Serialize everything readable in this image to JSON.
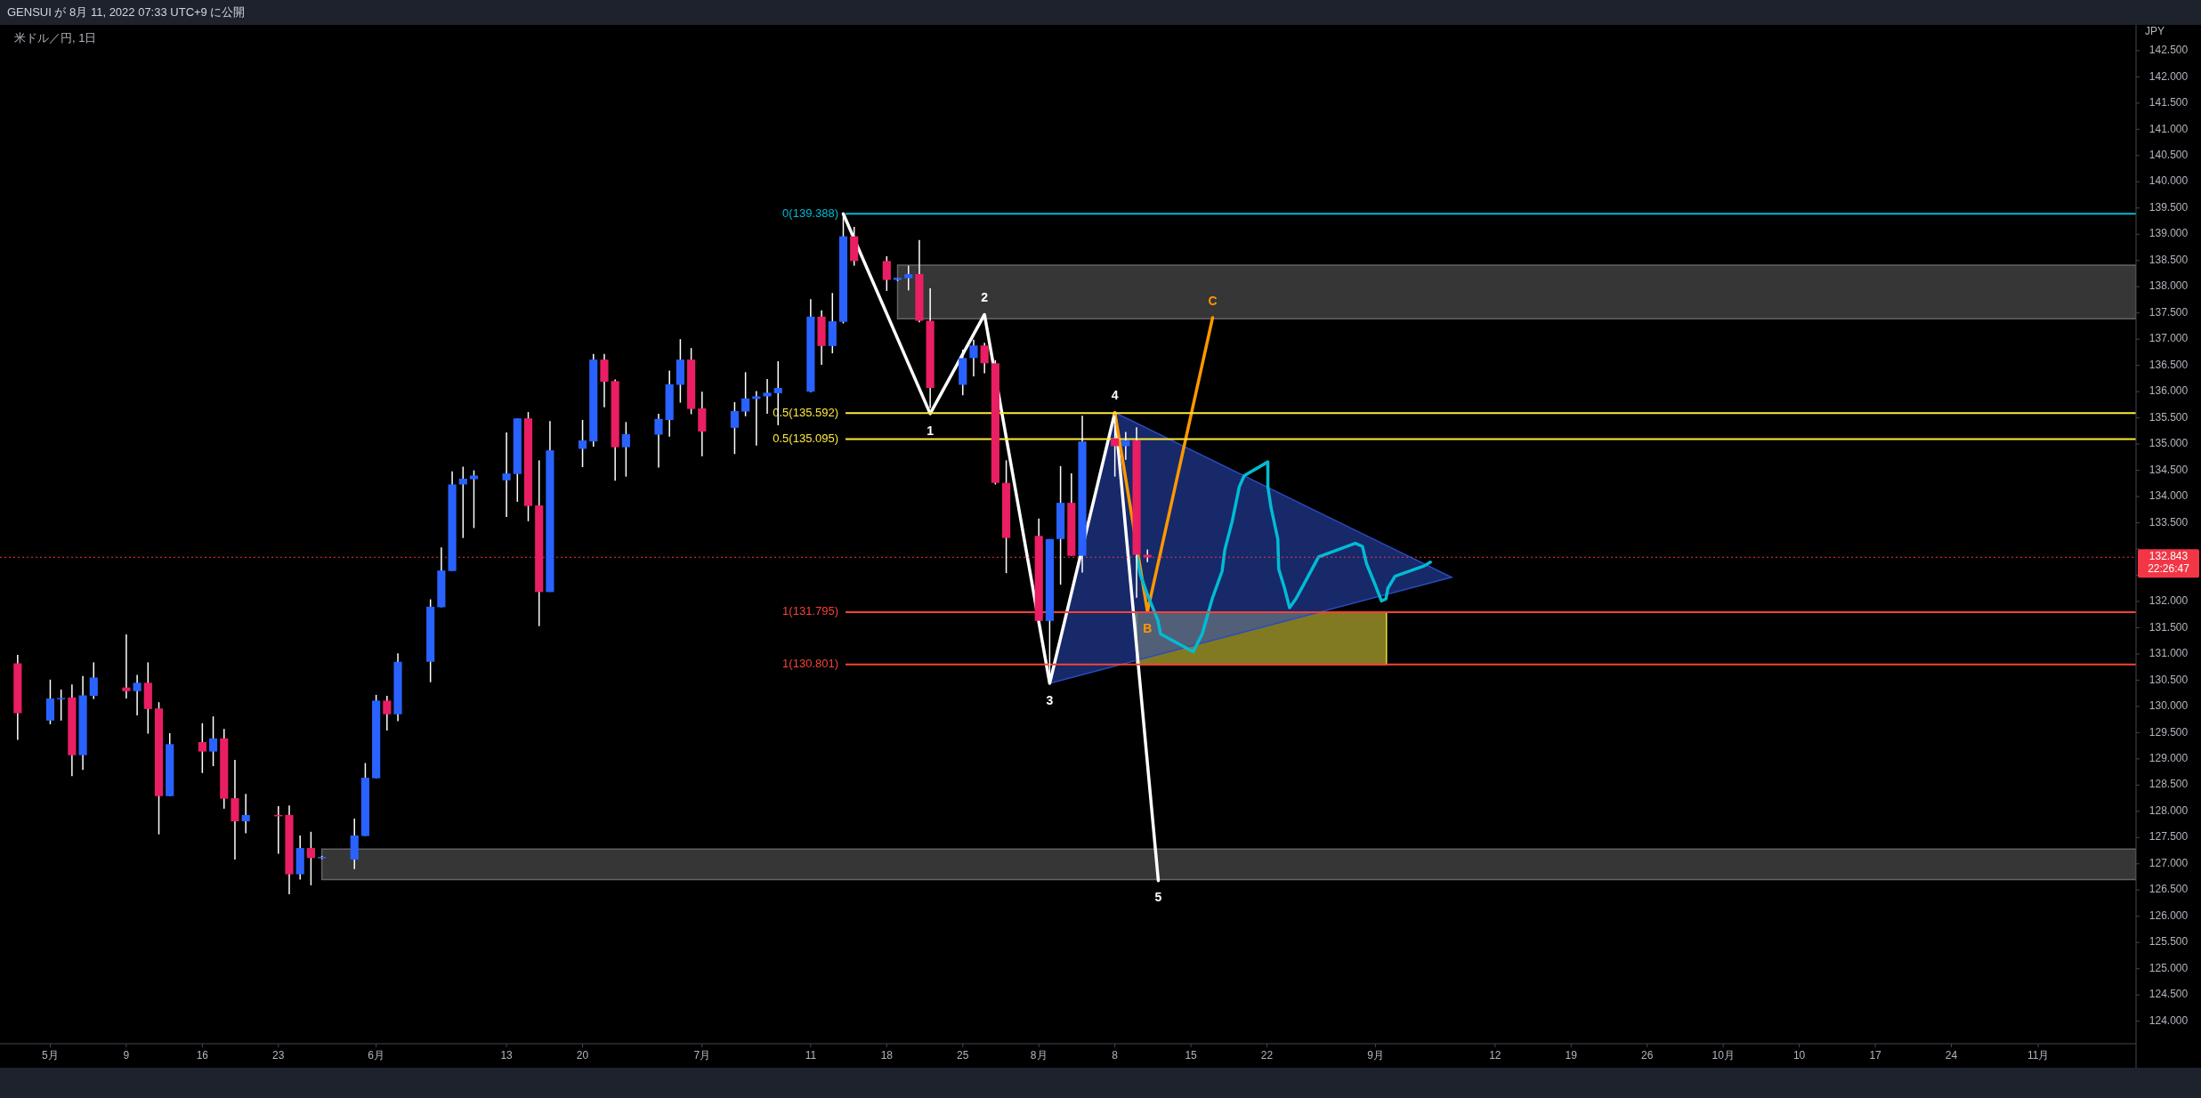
{
  "chart_data": {
    "type": "candlestick",
    "title": "米ドル／円, 1日",
    "subtitle": "GENSUI が 8月 11, 2022 07:33 UTC+9 に公開",
    "ylabel": "JPY",
    "xlim": [
      "2022-04-27T09:00",
      "2022-11-10"
    ],
    "ylim": [
      123.57,
      142.99
    ],
    "xticks": [
      {
        "value": "2022-05-02",
        "label": "5月"
      },
      {
        "value": "2022-05-09",
        "label": "9"
      },
      {
        "value": "2022-05-16",
        "label": "16"
      },
      {
        "value": "2022-05-23",
        "label": "23"
      },
      {
        "value": "2022-06-01",
        "label": "6月"
      },
      {
        "value": "2022-06-13",
        "label": "13"
      },
      {
        "value": "2022-06-20",
        "label": "20"
      },
      {
        "value": "2022-07-01",
        "label": "7月"
      },
      {
        "value": "2022-07-11",
        "label": "11"
      },
      {
        "value": "2022-07-18",
        "label": "18"
      },
      {
        "value": "2022-07-25",
        "label": "25"
      },
      {
        "value": "2022-08-01",
        "label": "8月"
      },
      {
        "value": "2022-08-08",
        "label": "8"
      },
      {
        "value": "2022-08-15",
        "label": "15"
      },
      {
        "value": "2022-08-22",
        "label": "22"
      },
      {
        "value": "2022-09-01",
        "label": "9月"
      },
      {
        "value": "2022-09-12",
        "label": "12"
      },
      {
        "value": "2022-09-19",
        "label": "19"
      },
      {
        "value": "2022-09-26",
        "label": "26"
      },
      {
        "value": "2022-10-03",
        "label": "10月"
      },
      {
        "value": "2022-10-10",
        "label": "10"
      },
      {
        "value": "2022-10-17",
        "label": "17"
      },
      {
        "value": "2022-10-24",
        "label": "24"
      },
      {
        "value": "2022-11-01",
        "label": "11月"
      }
    ],
    "yticks": [
      {
        "value": 124,
        "label": "124.000"
      },
      {
        "value": 124.5,
        "label": "124.500"
      },
      {
        "value": 125,
        "label": "125.000"
      },
      {
        "value": 125.5,
        "label": "125.500"
      },
      {
        "value": 126,
        "label": "126.000"
      },
      {
        "value": 126.5,
        "label": "126.500"
      },
      {
        "value": 127,
        "label": "127.000"
      },
      {
        "value": 127.5,
        "label": "127.500"
      },
      {
        "value": 128,
        "label": "128.000"
      },
      {
        "value": 128.5,
        "label": "128.500"
      },
      {
        "value": 129,
        "label": "129.000"
      },
      {
        "value": 129.5,
        "label": "129.500"
      },
      {
        "value": 130,
        "label": "130.000"
      },
      {
        "value": 130.5,
        "label": "130.500"
      },
      {
        "value": 131,
        "label": "131.000"
      },
      {
        "value": 131.5,
        "label": "131.500"
      },
      {
        "value": 132,
        "label": "132.000"
      },
      {
        "value": 132.5,
        "label": null
      },
      {
        "value": 133,
        "label": null
      },
      {
        "value": 133.5,
        "label": "133.500"
      },
      {
        "value": 134,
        "label": "134.000"
      },
      {
        "value": 134.5,
        "label": "134.500"
      },
      {
        "value": 135,
        "label": "135.000"
      },
      {
        "value": 135.5,
        "label": "135.500"
      },
      {
        "value": 136,
        "label": "136.000"
      },
      {
        "value": 136.5,
        "label": "136.500"
      },
      {
        "value": 137,
        "label": "137.000"
      },
      {
        "value": 137.5,
        "label": "137.500"
      },
      {
        "value": 138,
        "label": "138.000"
      },
      {
        "value": 138.5,
        "label": "138.500"
      },
      {
        "value": 139,
        "label": "139.000"
      },
      {
        "value": 139.5,
        "label": "139.500"
      },
      {
        "value": 140,
        "label": "140.000"
      },
      {
        "value": 140.5,
        "label": "140.500"
      },
      {
        "value": 141,
        "label": "141.000"
      },
      {
        "value": 141.5,
        "label": "141.500"
      },
      {
        "value": 142,
        "label": "142.000"
      },
      {
        "value": 142.5,
        "label": "142.500"
      }
    ],
    "x": [
      "2022-04-29",
      "2022-05-02",
      "2022-05-03",
      "2022-05-04",
      "2022-05-05",
      "2022-05-06",
      "2022-05-09",
      "2022-05-10",
      "2022-05-11",
      "2022-05-12",
      "2022-05-13",
      "2022-05-16",
      "2022-05-17",
      "2022-05-18",
      "2022-05-19",
      "2022-05-20",
      "2022-05-23",
      "2022-05-24",
      "2022-05-25",
      "2022-05-26",
      "2022-05-27",
      "2022-05-30",
      "2022-05-31",
      "2022-06-01",
      "2022-06-02",
      "2022-06-03",
      "2022-06-06",
      "2022-06-07",
      "2022-06-08",
      "2022-06-09",
      "2022-06-10",
      "2022-06-13",
      "2022-06-14",
      "2022-06-15",
      "2022-06-16",
      "2022-06-17",
      "2022-06-20",
      "2022-06-21",
      "2022-06-22",
      "2022-06-23",
      "2022-06-24",
      "2022-06-27",
      "2022-06-28",
      "2022-06-29",
      "2022-06-30",
      "2022-07-01",
      "2022-07-04",
      "2022-07-05",
      "2022-07-06",
      "2022-07-07",
      "2022-07-08",
      "2022-07-11",
      "2022-07-12",
      "2022-07-13",
      "2022-07-14",
      "2022-07-15",
      "2022-07-18",
      "2022-07-19",
      "2022-07-20",
      "2022-07-21",
      "2022-07-22",
      "2022-07-25",
      "2022-07-26",
      "2022-07-27",
      "2022-07-28",
      "2022-07-29",
      "2022-08-01",
      "2022-08-02",
      "2022-08-03",
      "2022-08-04",
      "2022-08-05",
      "2022-08-08",
      "2022-08-09",
      "2022-08-10",
      "2022-08-11"
    ],
    "ohlc": [
      [
        130.82,
        130.98,
        129.36,
        129.87
      ],
      [
        129.73,
        130.51,
        129.66,
        130.15
      ],
      [
        130.15,
        130.32,
        129.73,
        130.16
      ],
      [
        130.17,
        130.42,
        128.67,
        129.07
      ],
      [
        129.07,
        130.58,
        128.79,
        130.21
      ],
      [
        130.2,
        130.84,
        130.14,
        130.55
      ],
      [
        130.36,
        131.37,
        130.15,
        130.29
      ],
      [
        130.29,
        130.6,
        129.83,
        130.45
      ],
      [
        130.45,
        130.84,
        129.48,
        129.95
      ],
      [
        129.96,
        130.08,
        127.56,
        128.29
      ],
      [
        128.29,
        129.49,
        128.29,
        129.28
      ],
      [
        129.32,
        129.68,
        128.73,
        129.14
      ],
      [
        129.14,
        129.81,
        128.86,
        129.39
      ],
      [
        129.39,
        129.57,
        128.05,
        128.24
      ],
      [
        128.25,
        128.98,
        127.08,
        127.81
      ],
      [
        127.81,
        128.33,
        127.58,
        127.93
      ],
      [
        127.93,
        128.1,
        127.19,
        127.92
      ],
      [
        127.93,
        128.11,
        126.42,
        126.8
      ],
      [
        126.8,
        127.54,
        126.7,
        127.3
      ],
      [
        127.3,
        127.61,
        126.59,
        127.11
      ],
      [
        127.11,
        127.15,
        127.09,
        127.13
      ],
      [
        127.08,
        127.86,
        126.9,
        127.54
      ],
      [
        127.53,
        128.92,
        127.53,
        128.64
      ],
      [
        128.63,
        130.22,
        128.63,
        130.11
      ],
      [
        130.11,
        130.2,
        129.54,
        129.85
      ],
      [
        129.85,
        131.01,
        129.72,
        130.85
      ],
      [
        130.85,
        132.04,
        130.46,
        131.9
      ],
      [
        131.89,
        133.03,
        131.89,
        132.59
      ],
      [
        132.58,
        134.48,
        132.58,
        134.23
      ],
      [
        134.23,
        134.57,
        133.21,
        134.34
      ],
      [
        134.33,
        134.5,
        133.4,
        134.4
      ],
      [
        134.31,
        135.22,
        133.61,
        134.44
      ],
      [
        134.43,
        135.49,
        133.9,
        135.49
      ],
      [
        135.49,
        135.61,
        133.53,
        133.82
      ],
      [
        133.83,
        134.69,
        131.53,
        132.18
      ],
      [
        132.18,
        135.44,
        132.18,
        134.88
      ],
      [
        134.91,
        135.46,
        134.56,
        135.07
      ],
      [
        135.05,
        136.72,
        134.95,
        136.61
      ],
      [
        136.61,
        136.72,
        135.7,
        136.19
      ],
      [
        136.2,
        136.23,
        134.3,
        134.94
      ],
      [
        134.94,
        135.42,
        134.38,
        135.19
      ],
      [
        135.18,
        135.58,
        134.55,
        135.48
      ],
      [
        135.46,
        136.4,
        135.14,
        136.14
      ],
      [
        136.13,
        137.0,
        135.79,
        136.61
      ],
      [
        136.61,
        136.83,
        135.57,
        135.67
      ],
      [
        135.68,
        136.0,
        134.77,
        135.24
      ],
      [
        135.31,
        135.8,
        134.81,
        135.63
      ],
      [
        135.62,
        136.37,
        135.53,
        135.87
      ],
      [
        135.86,
        136.01,
        134.97,
        135.91
      ],
      [
        135.91,
        136.24,
        135.58,
        135.98
      ],
      [
        135.97,
        136.58,
        135.36,
        136.07
      ],
      [
        136.0,
        137.76,
        135.99,
        137.43
      ],
      [
        137.43,
        137.55,
        136.51,
        136.87
      ],
      [
        136.87,
        137.88,
        136.73,
        137.34
      ],
      [
        137.33,
        139.39,
        137.3,
        138.96
      ],
      [
        138.96,
        139.14,
        138.4,
        138.49
      ],
      [
        138.49,
        138.58,
        137.92,
        138.13
      ],
      [
        138.13,
        138.17,
        138.11,
        138.17
      ],
      [
        138.16,
        138.4,
        137.93,
        138.24
      ],
      [
        138.24,
        138.89,
        137.32,
        137.35
      ],
      [
        137.35,
        137.97,
        135.69,
        136.07
      ],
      [
        136.13,
        136.8,
        135.93,
        136.64
      ],
      [
        136.64,
        136.99,
        136.29,
        136.88
      ],
      [
        136.88,
        136.93,
        136.35,
        136.54
      ],
      [
        136.54,
        136.6,
        134.23,
        134.26
      ],
      [
        134.26,
        134.69,
        132.54,
        133.21
      ],
      [
        133.25,
        133.58,
        131.63,
        131.63
      ],
      [
        131.63,
        133.19,
        130.44,
        133.19
      ],
      [
        133.19,
        134.58,
        132.32,
        133.88
      ],
      [
        133.88,
        134.44,
        132.87,
        132.87
      ],
      [
        132.87,
        135.54,
        132.55,
        135.05
      ],
      [
        135.11,
        135.54,
        134.38,
        134.96
      ],
      [
        134.96,
        135.23,
        134.7,
        135.07
      ],
      [
        135.07,
        135.32,
        132.07,
        132.89
      ],
      [
        132.89,
        132.99,
        132.75,
        132.84
      ]
    ],
    "colors": [
      "#e91e63",
      "#2962ff",
      "#2962ff",
      "#e91e63",
      "#2962ff",
      "#2962ff",
      "#e91e63",
      "#2962ff",
      "#e91e63",
      "#e91e63",
      "#2962ff",
      "#e91e63",
      "#2962ff",
      "#e91e63",
      "#e91e63",
      "#2962ff",
      "#e91e63",
      "#e91e63",
      "#2962ff",
      "#e91e63",
      "#2962ff",
      "#2962ff",
      "#2962ff",
      "#2962ff",
      "#e91e63",
      "#2962ff",
      "#2962ff",
      "#2962ff",
      "#2962ff",
      "#2962ff",
      "#2962ff",
      "#2962ff",
      "#2962ff",
      "#e91e63",
      "#e91e63",
      "#2962ff",
      "#2962ff",
      "#2962ff",
      "#e91e63",
      "#e91e63",
      "#2962ff",
      "#2962ff",
      "#2962ff",
      "#2962ff",
      "#e91e63",
      "#e91e63",
      "#2962ff",
      "#2962ff",
      "#2962ff",
      "#2962ff",
      "#2962ff",
      "#2962ff",
      "#e91e63",
      "#2962ff",
      "#2962ff",
      "#e91e63",
      "#e91e63",
      "#2962ff",
      "#2962ff",
      "#e91e63",
      "#e91e63",
      "#2962ff",
      "#2962ff",
      "#e91e63",
      "#e91e63",
      "#e91e63",
      "#e91e63",
      "#2962ff",
      "#2962ff",
      "#e91e63",
      "#2962ff",
      "#e91e63",
      "#2962ff",
      "#e91e63",
      "#e91e63"
    ],
    "series": [
      {
        "type": "area",
        "color": "#636363",
        "x": [
          "2022-07-19",
          "2022-11-10",
          "2022-11-10",
          "2022-07-19",
          "2022-07-19"
        ],
        "values": [
          138.41,
          138.41,
          137.39,
          137.39,
          138.41
        ]
      },
      {
        "type": "area",
        "color": "#636363",
        "x": [
          "2022-05-27",
          "2022-11-10",
          "2022-11-10",
          "2022-05-27",
          "2022-05-27"
        ],
        "values": [
          127.28,
          127.28,
          126.7,
          126.7,
          127.28
        ]
      },
      {
        "type": "area",
        "color": "#ebde3e",
        "x": [
          "2022-08-10",
          "2022-09-02",
          "2022-09-02",
          "2022-08-10",
          "2022-08-10"
        ],
        "values": [
          131.8,
          131.8,
          130.8,
          130.8,
          131.8
        ]
      },
      {
        "type": "area",
        "color": "#2a4bc0",
        "x": [
          "2022-08-02",
          "2022-08-08",
          "2022-09-08",
          "2022-08-02"
        ],
        "values": [
          130.44,
          135.6,
          132.46,
          130.44
        ]
      },
      {
        "type": "line",
        "color": "#ffffff",
        "x": [
          "2022-07-14",
          "2022-07-22",
          "2022-07-27",
          "2022-08-02",
          "2022-08-08",
          "2022-08-12"
        ],
        "values": [
          139.39,
          135.58,
          137.47,
          130.44,
          135.6,
          126.68
        ]
      },
      {
        "type": "line",
        "color": "#ff9800",
        "x": [
          "2022-08-08",
          "2022-08-11",
          "2022-08-17"
        ],
        "values": [
          135.6,
          131.81,
          137.41
        ]
      },
      {
        "type": "line",
        "color": "#00bcd4",
        "x": [
          "2022-08-10T01:00",
          "2022-08-10T08:00",
          "2022-08-11T01:00",
          "2022-08-11T23:00",
          "2022-08-12T05:00",
          "2022-08-15T05:00",
          "2022-08-16T01:00",
          "2022-08-16T23:00",
          "2022-08-17T21:00",
          "2022-08-18T03:00",
          "2022-08-18T19:00",
          "2022-08-19T11:00",
          "2022-08-19T22:00",
          "2022-08-22T02:00",
          "2022-08-22T02:00",
          "2022-08-22T09:00",
          "2022-08-23T00:00",
          "2022-08-23T02:00",
          "2022-08-23T15:00",
          "2022-08-24T02:00",
          "2022-08-24T16:00",
          "2022-08-25T09:00",
          "2022-08-26T18:00",
          "2022-08-30T03:00",
          "2022-08-30T19:00",
          "2022-08-31T04:00",
          "2022-08-31T23:00",
          "2022-09-01T13:00",
          "2022-09-01T23:00",
          "2022-09-02T03:00",
          "2022-09-02T19:00",
          "2022-09-05T12:00",
          "2022-09-06T01:00"
        ],
        "values": [
          132.85,
          132.52,
          132.11,
          131.64,
          131.38,
          131.04,
          131.38,
          132.05,
          132.58,
          132.99,
          133.52,
          134.19,
          134.4,
          134.66,
          134.19,
          133.79,
          133.19,
          132.62,
          132.25,
          131.88,
          132.05,
          132.32,
          132.85,
          133.11,
          133.05,
          132.72,
          132.32,
          132.01,
          132.05,
          132.25,
          132.48,
          132.68,
          132.75
        ]
      }
    ],
    "ref_lines": [
      {
        "axis": "y",
        "value": 139.388,
        "label": "0(139.388)",
        "color": "#00bcd4",
        "line_style": "solid"
      },
      {
        "axis": "y",
        "value": 135.592,
        "label": "0.5(135.592)",
        "color": "#ffeb3b",
        "line_style": "solid"
      },
      {
        "axis": "y",
        "value": 135.095,
        "label": "0.5(135.095)",
        "color": "#ffeb3b",
        "line_style": "solid"
      },
      {
        "axis": "y",
        "value": 131.795,
        "label": "1(131.795)",
        "color": "#f44336",
        "line_style": "solid"
      },
      {
        "axis": "y",
        "value": 130.801,
        "label": "1(130.801)",
        "color": "#f44336",
        "line_style": "solid"
      },
      {
        "axis": "y",
        "value": 132.843,
        "label": "132.843\n22:26:47",
        "color": "#f23645",
        "line_style": "dotted"
      }
    ],
    "annotations": [
      {
        "text": "1",
        "x": "2022-07-22",
        "y": 135.58
      },
      {
        "text": "2",
        "x": "2022-07-27",
        "y": 137.47
      },
      {
        "text": "3",
        "x": "2022-08-02",
        "y": 130.44
      },
      {
        "text": "4",
        "x": "2022-08-08",
        "y": 135.6
      },
      {
        "text": "5",
        "x": "2022-08-12",
        "y": 126.68
      },
      {
        "text": "B",
        "x": "2022-08-11",
        "y": 131.81
      },
      {
        "text": "C",
        "x": "2022-08-17",
        "y": 137.41
      }
    ]
  }
}
